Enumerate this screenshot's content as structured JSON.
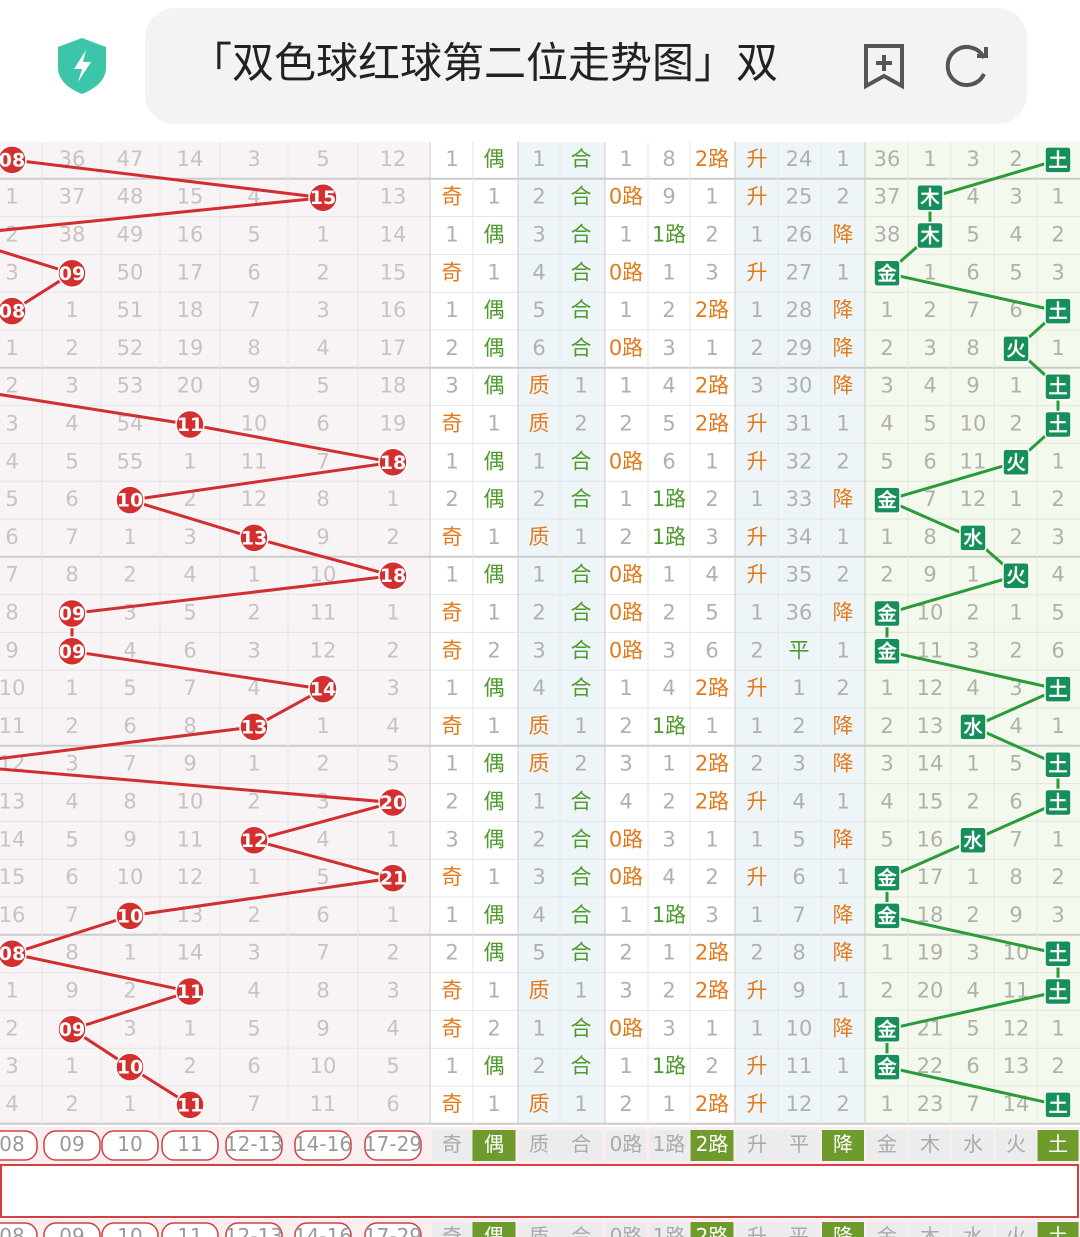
{
  "header": {
    "title": "「双色球红球第二位走势图」双"
  },
  "table": {
    "rows": [
      [
        {
          "ball": "08"
        },
        "36",
        "47",
        "14",
        "3",
        "5",
        "12",
        "1",
        "偶",
        "1",
        "合",
        "1",
        "8",
        "2路",
        "升",
        "24",
        "1",
        "36",
        "1",
        "3",
        "2",
        "土"
      ],
      [
        "1",
        "37",
        "48",
        "15",
        "4",
        {
          "ball": "15"
        },
        "13",
        "奇",
        "1",
        "2",
        "合",
        "0路",
        "9",
        "1",
        "升",
        "25",
        "2",
        "37",
        "木",
        "4",
        "3",
        "1"
      ],
      [
        "2",
        "38",
        "49",
        "16",
        "5",
        "1",
        "14",
        "1",
        "偶",
        "3",
        "合",
        "1",
        "1路",
        "2",
        "1",
        "26",
        "降",
        "38",
        "木",
        "5",
        "4",
        "2"
      ],
      [
        "3",
        {
          "ball": "09"
        },
        "50",
        "17",
        "6",
        "2",
        "15",
        "奇",
        "1",
        "4",
        "合",
        "0路",
        "1",
        "3",
        "升",
        "27",
        "1",
        "金",
        "1",
        "6",
        "5",
        "3"
      ],
      [
        {
          "ball": "08"
        },
        "1",
        "51",
        "18",
        "7",
        "3",
        "16",
        "1",
        "偶",
        "5",
        "合",
        "1",
        "2",
        "2路",
        "1",
        "28",
        "降",
        "1",
        "2",
        "7",
        "6",
        "土"
      ],
      [
        "1",
        "2",
        "52",
        "19",
        "8",
        "4",
        "17",
        "2",
        "偶",
        "6",
        "合",
        "0路",
        "3",
        "1",
        "2",
        "29",
        "降",
        "2",
        "3",
        "8",
        "火",
        "1"
      ],
      [
        "2",
        "3",
        "53",
        "20",
        "9",
        "5",
        "18",
        "3",
        "偶",
        "质",
        "1",
        "1",
        "4",
        "2路",
        "3",
        "30",
        "降",
        "3",
        "4",
        "9",
        "1",
        "土"
      ],
      [
        "3",
        "4",
        "54",
        {
          "ball": "11"
        },
        "10",
        "6",
        "19",
        "奇",
        "1",
        "质",
        "2",
        "2",
        "5",
        "2路",
        "升",
        "31",
        "1",
        "4",
        "5",
        "10",
        "2",
        "土"
      ],
      [
        "4",
        "5",
        "55",
        "1",
        "11",
        "7",
        {
          "ball": "18"
        },
        "1",
        "偶",
        "1",
        "合",
        "0路",
        "6",
        "1",
        "升",
        "32",
        "2",
        "5",
        "6",
        "11",
        "火",
        "1"
      ],
      [
        "5",
        "6",
        {
          "ball": "10"
        },
        "2",
        "12",
        "8",
        "1",
        "2",
        "偶",
        "2",
        "合",
        "1",
        "1路",
        "2",
        "1",
        "33",
        "降",
        "金",
        "7",
        "12",
        "1",
        "2"
      ],
      [
        "6",
        "7",
        "1",
        "3",
        {
          "ball": "13"
        },
        "9",
        "2",
        "奇",
        "1",
        "质",
        "1",
        "2",
        "1路",
        "3",
        "升",
        "34",
        "1",
        "1",
        "8",
        "水",
        "2",
        "3"
      ],
      [
        "7",
        "8",
        "2",
        "4",
        "1",
        "10",
        {
          "ball": "18"
        },
        "1",
        "偶",
        "1",
        "合",
        "0路",
        "1",
        "4",
        "升",
        "35",
        "2",
        "2",
        "9",
        "1",
        "火",
        "4"
      ],
      [
        "8",
        {
          "ball": "09"
        },
        "3",
        "5",
        "2",
        "11",
        "1",
        "奇",
        "1",
        "2",
        "合",
        "0路",
        "2",
        "5",
        "1",
        "36",
        "降",
        "金",
        "10",
        "2",
        "1",
        "5"
      ],
      [
        "9",
        {
          "ball": "09"
        },
        "4",
        "6",
        "3",
        "12",
        "2",
        "奇",
        "2",
        "3",
        "合",
        "0路",
        "3",
        "6",
        "2",
        "平",
        "1",
        "金",
        "11",
        "3",
        "2",
        "6"
      ],
      [
        "10",
        "1",
        "5",
        "7",
        "4",
        {
          "ball": "14"
        },
        "3",
        "1",
        "偶",
        "4",
        "合",
        "1",
        "4",
        "2路",
        "升",
        "1",
        "2",
        "1",
        "12",
        "4",
        "3",
        "土"
      ],
      [
        "11",
        "2",
        "6",
        "8",
        {
          "ball": "13"
        },
        "1",
        "4",
        "奇",
        "1",
        "质",
        "1",
        "2",
        "1路",
        "1",
        "1",
        "2",
        "降",
        "2",
        "13",
        "水",
        "4",
        "1"
      ],
      [
        "12",
        "3",
        "7",
        "9",
        "1",
        "2",
        "5",
        "1",
        "偶",
        "质",
        "2",
        "3",
        "1",
        "2路",
        "2",
        "3",
        "降",
        "3",
        "14",
        "1",
        "5",
        "土"
      ],
      [
        "13",
        "4",
        "8",
        "10",
        "2",
        "3",
        {
          "ball": "20"
        },
        "2",
        "偶",
        "1",
        "合",
        "4",
        "2",
        "2路",
        "升",
        "4",
        "1",
        "4",
        "15",
        "2",
        "6",
        "土"
      ],
      [
        "14",
        "5",
        "9",
        "11",
        {
          "ball": "12"
        },
        "4",
        "1",
        "3",
        "偶",
        "2",
        "合",
        "0路",
        "3",
        "1",
        "1",
        "5",
        "降",
        "5",
        "16",
        "水",
        "7",
        "1"
      ],
      [
        "15",
        "6",
        "10",
        "12",
        "1",
        "5",
        {
          "ball": "21"
        },
        "奇",
        "1",
        "3",
        "合",
        "0路",
        "4",
        "2",
        "升",
        "6",
        "1",
        "金",
        "17",
        "1",
        "8",
        "2"
      ],
      [
        "16",
        "7",
        {
          "ball": "10"
        },
        "13",
        "2",
        "6",
        "1",
        "1",
        "偶",
        "4",
        "合",
        "1",
        "1路",
        "3",
        "1",
        "7",
        "降",
        "金",
        "18",
        "2",
        "9",
        "3"
      ],
      [
        {
          "ball": "08"
        },
        "8",
        "1",
        "14",
        "3",
        "7",
        "2",
        "2",
        "偶",
        "5",
        "合",
        "2",
        "1",
        "2路",
        "2",
        "8",
        "降",
        "1",
        "19",
        "3",
        "10",
        "土"
      ],
      [
        "1",
        "9",
        "2",
        {
          "ball": "11"
        },
        "4",
        "8",
        "3",
        "奇",
        "1",
        "质",
        "1",
        "3",
        "2",
        "2路",
        "升",
        "9",
        "1",
        "2",
        "20",
        "4",
        "11",
        "土"
      ],
      [
        "2",
        {
          "ball": "09"
        },
        "3",
        "1",
        "5",
        "9",
        "4",
        "奇",
        "2",
        "1",
        "合",
        "0路",
        "3",
        "1",
        "1",
        "10",
        "降",
        "金",
        "21",
        "5",
        "12",
        "1"
      ],
      [
        "3",
        "1",
        {
          "ball": "10"
        },
        "2",
        "6",
        "10",
        "5",
        "1",
        "偶",
        "2",
        "合",
        "1",
        "1路",
        "2",
        "升",
        "11",
        "1",
        "金",
        "22",
        "6",
        "13",
        "2"
      ],
      [
        "4",
        "2",
        "1",
        {
          "ball": "11"
        },
        "7",
        "11",
        "6",
        "奇",
        "1",
        "质",
        "1",
        "2",
        "1",
        "2路",
        "升",
        "12",
        "2",
        "1",
        "23",
        "7",
        "14",
        "土"
      ]
    ],
    "footer": [
      {
        "label": "08"
      },
      {
        "label": "09"
      },
      {
        "label": "10"
      },
      {
        "label": "11"
      },
      {
        "label": "12-13"
      },
      {
        "label": "14-16"
      },
      {
        "label": "17-29"
      },
      {
        "label": "奇"
      },
      {
        "label": "偶",
        "selected": true
      },
      {
        "label": "质"
      },
      {
        "label": "合"
      },
      {
        "label": "0路"
      },
      {
        "label": "1路"
      },
      {
        "label": "2路",
        "selected": true
      },
      {
        "label": "升"
      },
      {
        "label": "平"
      },
      {
        "label": "降",
        "selected": true
      },
      {
        "label": "金"
      },
      {
        "label": "木"
      },
      {
        "label": "水"
      },
      {
        "label": "火"
      },
      {
        "label": "土",
        "selected": true
      }
    ]
  }
}
